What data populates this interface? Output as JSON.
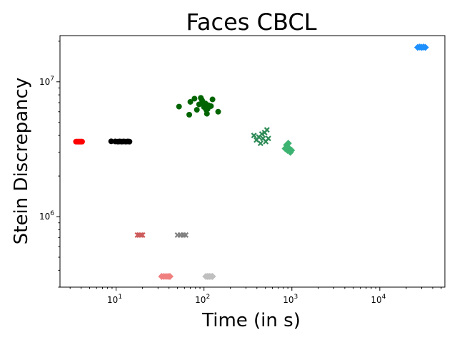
{
  "chart_data": {
    "type": "scatter",
    "title": "Faces CBCL",
    "xlabel": "Time (in s)",
    "ylabel": "Stein Discrepancy",
    "xscale": "log",
    "yscale": "log",
    "xlim": [
      2.3,
      55000
    ],
    "ylim": [
      300000,
      22000000
    ],
    "grid": false,
    "legend": "none",
    "x_ticks": [
      {
        "value": 10,
        "base": "10",
        "exp": "1"
      },
      {
        "value": 100,
        "base": "10",
        "exp": "2"
      },
      {
        "value": 1000,
        "base": "10",
        "exp": "3"
      },
      {
        "value": 10000,
        "base": "10",
        "exp": "4"
      }
    ],
    "y_ticks": [
      {
        "value": 1000000,
        "base": "10",
        "exp": "6"
      },
      {
        "value": 10000000,
        "base": "10",
        "exp": "7"
      }
    ],
    "series": [
      {
        "color": "#ff0000",
        "marker": "circle",
        "points": [
          [
            3.5,
            3600000
          ],
          [
            3.6,
            3600000
          ],
          [
            3.7,
            3600000
          ],
          [
            3.8,
            3600000
          ],
          [
            3.9,
            3600000
          ],
          [
            4.0,
            3600000
          ],
          [
            4.1,
            3600000
          ]
        ]
      },
      {
        "color": "#000000",
        "marker": "circle",
        "points": [
          [
            8.8,
            3620000
          ],
          [
            9.8,
            3610000
          ],
          [
            10.5,
            3600000
          ],
          [
            11.0,
            3610000
          ],
          [
            11.6,
            3600000
          ],
          [
            12.2,
            3610000
          ],
          [
            12.9,
            3600000
          ],
          [
            13.6,
            3610000
          ],
          [
            14.2,
            3600000
          ]
        ]
      },
      {
        "color": "#006400",
        "marker": "circle",
        "points": [
          [
            52,
            6550000
          ],
          [
            68,
            5700000
          ],
          [
            70,
            7100000
          ],
          [
            78,
            7500000
          ],
          [
            83,
            6200000
          ],
          [
            88,
            6800000
          ],
          [
            92,
            7600000
          ],
          [
            95,
            7300000
          ],
          [
            98,
            7000000
          ],
          [
            100,
            6500000
          ],
          [
            104,
            6900000
          ],
          [
            106,
            6200000
          ],
          [
            108,
            5800000
          ],
          [
            110,
            6300000
          ],
          [
            112,
            6700000
          ],
          [
            120,
            6600000
          ],
          [
            125,
            7400000
          ],
          [
            145,
            6000000
          ]
        ]
      },
      {
        "color": "#2e8b57",
        "marker": "x",
        "points": [
          [
            370,
            4000000
          ],
          [
            395,
            3700000
          ],
          [
            420,
            3900000
          ],
          [
            440,
            3500000
          ],
          [
            455,
            4100000
          ],
          [
            470,
            3800000
          ],
          [
            490,
            4200000
          ],
          [
            505,
            3600000
          ],
          [
            520,
            4400000
          ],
          [
            540,
            3800000
          ]
        ]
      },
      {
        "color": "#3cb371",
        "marker": "diamond",
        "points": [
          [
            840,
            3200000
          ],
          [
            870,
            3400000
          ],
          [
            890,
            3100000
          ],
          [
            910,
            3500000
          ],
          [
            935,
            3200000
          ],
          [
            960,
            3000000
          ],
          [
            990,
            3100000
          ]
        ]
      },
      {
        "color": "#1e90ff",
        "marker": "diamond",
        "points": [
          [
            27000,
            18000000
          ],
          [
            28500,
            18100000
          ],
          [
            30000,
            18000000
          ],
          [
            31500,
            18100000
          ],
          [
            33000,
            18000000
          ]
        ]
      },
      {
        "color": "#cd5c5c",
        "marker": "x",
        "points": [
          [
            17.5,
            730000
          ],
          [
            18.3,
            730000
          ],
          [
            19.2,
            730000
          ],
          [
            20.0,
            730000
          ]
        ]
      },
      {
        "color": "#808080",
        "marker": "x",
        "points": [
          [
            50,
            730000
          ],
          [
            54,
            730000
          ],
          [
            58,
            730000
          ],
          [
            62,
            730000
          ]
        ]
      },
      {
        "color": "#f08080",
        "marker": "diamond",
        "points": [
          [
            33,
            360000
          ],
          [
            35,
            360000
          ],
          [
            37,
            360000
          ],
          [
            39,
            360000
          ],
          [
            41,
            360000
          ]
        ]
      },
      {
        "color": "#c0c0c0",
        "marker": "diamond",
        "points": [
          [
            105,
            360000
          ],
          [
            110,
            360000
          ],
          [
            115,
            360000
          ],
          [
            120,
            360000
          ],
          [
            125,
            360000
          ]
        ]
      }
    ]
  }
}
